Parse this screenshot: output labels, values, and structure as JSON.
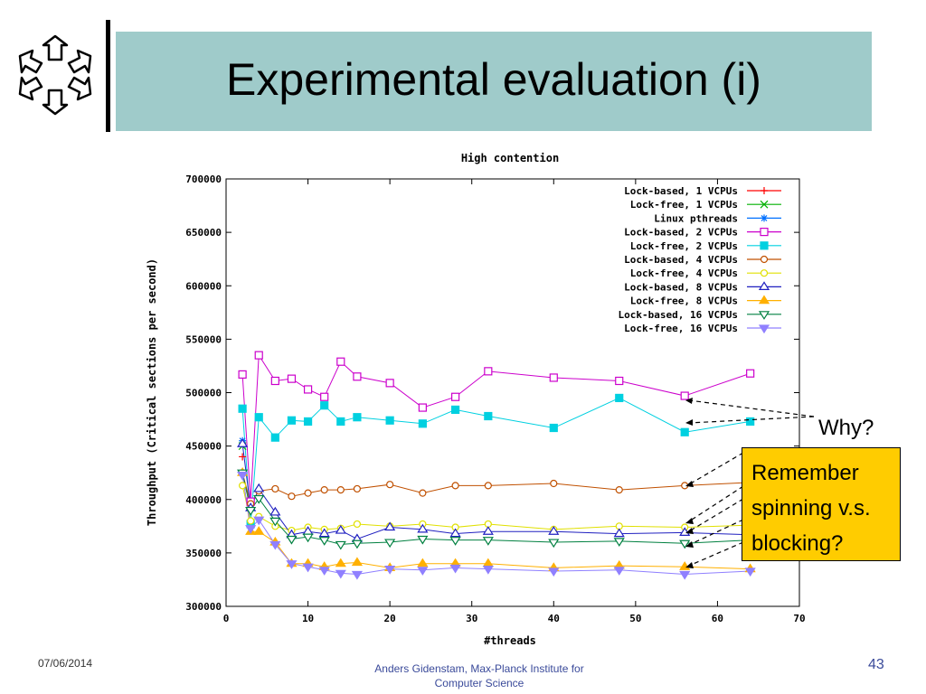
{
  "slide": {
    "title": "Experimental evaluation (i)",
    "why_label": "Why?",
    "callout_lines": [
      "Remember",
      "spinning v.s.",
      "blocking?"
    ],
    "footer_date": "07/06/2014",
    "footer_author_line1": "Anders Gidenstam, Max-Planck Institute for",
    "footer_author_line2": "Computer Science",
    "page_number": "43",
    "title_box_color": "#9fcbca",
    "callout_color": "#ffcc00",
    "logo_icon": "hexagon-arrows-logo-icon"
  },
  "chart_data": {
    "type": "line",
    "title": "High contention",
    "xlabel": "#threads",
    "ylabel": "Throughput (Critical sections per second)",
    "xlim": [
      0,
      70
    ],
    "ylim": [
      300000,
      700000
    ],
    "x_ticks": [
      0,
      10,
      20,
      30,
      40,
      50,
      60,
      70
    ],
    "y_ticks": [
      300000,
      350000,
      400000,
      450000,
      500000,
      550000,
      600000,
      650000,
      700000
    ],
    "x_tick_labels": [
      "0",
      "10",
      "20",
      "30",
      "40",
      "50",
      "60",
      "70"
    ],
    "y_tick_labels": [
      "300000",
      "350000",
      "400000",
      "450000",
      "500000",
      "550000",
      "600000",
      "650000",
      "700000"
    ],
    "grid": false,
    "legend_position": "top-right",
    "series": [
      {
        "name": "Lock-based, 1 VCPUs",
        "color": "#ff0000",
        "marker": "plus",
        "x": [
          2
        ],
        "y": [
          440000
        ]
      },
      {
        "name": "Lock-free, 1 VCPUs",
        "color": "#00b000",
        "marker": "cross",
        "x": [
          2
        ],
        "y": [
          450000
        ]
      },
      {
        "name": "Linux pthreads",
        "color": "#0070ff",
        "marker": "star",
        "x": [
          2
        ],
        "y": [
          455000
        ]
      },
      {
        "name": "Lock-based, 2 VCPUs",
        "color": "#cc00cc",
        "marker": "square-open",
        "x": [
          2,
          3,
          4,
          6,
          8,
          10,
          12,
          14,
          16,
          20,
          24,
          28,
          32,
          40,
          48,
          56,
          64
        ],
        "y": [
          517000,
          398000,
          535000,
          511000,
          513000,
          503000,
          496000,
          529000,
          515000,
          509000,
          486000,
          496000,
          520000,
          514000,
          511000,
          497000,
          518000
        ]
      },
      {
        "name": "Lock-free, 2 VCPUs",
        "color": "#00d0e0",
        "marker": "square-filled",
        "x": [
          2,
          3,
          4,
          6,
          8,
          10,
          12,
          14,
          16,
          20,
          24,
          28,
          32,
          40,
          48,
          56,
          64
        ],
        "y": [
          485000,
          377000,
          477000,
          458000,
          474000,
          473000,
          488000,
          473000,
          477000,
          474000,
          471000,
          484000,
          478000,
          467000,
          495000,
          463000,
          473000
        ]
      },
      {
        "name": "Lock-based, 4 VCPUs",
        "color": "#c05000",
        "marker": "circle-open",
        "x": [
          2,
          3,
          4,
          6,
          8,
          10,
          12,
          14,
          16,
          20,
          24,
          28,
          32,
          40,
          48,
          56,
          64
        ],
        "y": [
          425000,
          396000,
          408000,
          410000,
          403000,
          406000,
          409000,
          409000,
          410000,
          414000,
          406000,
          413000,
          413000,
          415000,
          409000,
          413000,
          416000
        ]
      },
      {
        "name": "Lock-free, 4 VCPUs",
        "color": "#e0e000",
        "marker": "circle-open",
        "x": [
          2,
          3,
          4,
          6,
          8,
          10,
          12,
          14,
          16,
          20,
          24,
          28,
          32,
          40,
          48,
          56,
          64
        ],
        "y": [
          413000,
          380000,
          384000,
          375000,
          371000,
          374000,
          372000,
          373000,
          377000,
          375000,
          377000,
          374000,
          377000,
          372000,
          375000,
          374000,
          376000
        ]
      },
      {
        "name": "Lock-based, 8 VCPUs",
        "color": "#2020c0",
        "marker": "triangle-open",
        "x": [
          2,
          3,
          4,
          6,
          8,
          10,
          12,
          14,
          16,
          20,
          24,
          28,
          32,
          40,
          48,
          56,
          64
        ],
        "y": [
          452000,
          392000,
          410000,
          388000,
          367000,
          370000,
          368000,
          371000,
          363000,
          374000,
          372000,
          368000,
          370000,
          370000,
          368000,
          369000,
          367000
        ]
      },
      {
        "name": "Lock-free, 8 VCPUs",
        "color": "#ffb000",
        "marker": "triangle-filled",
        "x": [
          2,
          3,
          4,
          6,
          8,
          10,
          12,
          14,
          16,
          20,
          24,
          28,
          32,
          40,
          48,
          56,
          64
        ],
        "y": [
          425000,
          370000,
          370000,
          360000,
          340000,
          340000,
          337000,
          340000,
          341000,
          336000,
          340000,
          340000,
          340000,
          336000,
          338000,
          337000,
          335000
        ]
      },
      {
        "name": "Lock-based, 16 VCPUs",
        "color": "#008040",
        "marker": "triangle-down-open",
        "x": [
          2,
          3,
          4,
          6,
          8,
          10,
          12,
          14,
          16,
          20,
          24,
          28,
          32,
          40,
          48,
          56,
          64
        ],
        "y": [
          425000,
          390000,
          401000,
          380000,
          363000,
          365000,
          362000,
          358000,
          359000,
          360000,
          363000,
          362000,
          362000,
          360000,
          361000,
          359000,
          362000
        ]
      },
      {
        "name": "Lock-free, 16 VCPUs",
        "color": "#9080ff",
        "marker": "triangle-down-filled",
        "x": [
          2,
          3,
          4,
          6,
          8,
          10,
          12,
          14,
          16,
          20,
          24,
          28,
          32,
          40,
          48,
          56,
          64
        ],
        "y": [
          423000,
          373000,
          381000,
          358000,
          340000,
          337000,
          334000,
          331000,
          330000,
          335000,
          334000,
          336000,
          335000,
          333000,
          334000,
          330000,
          333000
        ]
      }
    ]
  }
}
